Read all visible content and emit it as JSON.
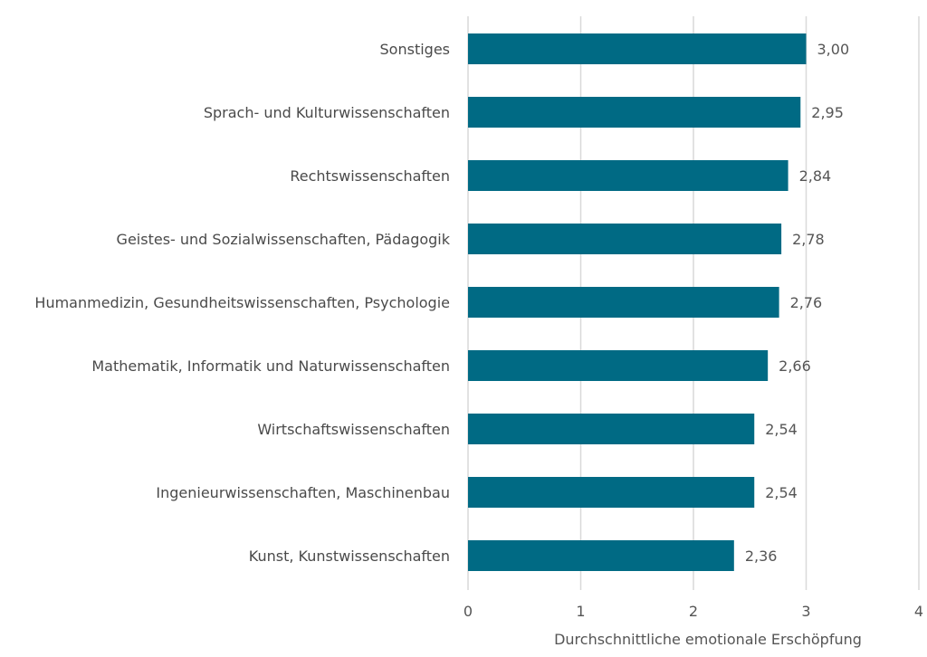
{
  "chart_data": {
    "type": "bar",
    "orientation": "horizontal",
    "categories": [
      "Sonstiges",
      "Sprach- und Kulturwissenschaften",
      "Rechtswissenschaften",
      "Geistes- und Sozialwissenschaften, Pädagogik",
      "Humanmedizin, Gesundheitswissenschaften, Psychologie",
      "Mathematik, Informatik und Naturwissenschaften",
      "Wirtschaftswissenschaften",
      "Ingenieurwissenschaften, Maschinenbau",
      "Kunst, Kunstwissenschaften"
    ],
    "values": [
      3.0,
      2.95,
      2.84,
      2.78,
      2.76,
      2.66,
      2.54,
      2.54,
      2.36
    ],
    "value_labels": [
      "3,00",
      "2,95",
      "2,84",
      "2,78",
      "2,76",
      "2,66",
      "2,54",
      "2,54",
      "2,36"
    ],
    "title": "",
    "xlabel": "Durchschnittliche emotionale Erschöpfung",
    "ylabel": "",
    "xlim": [
      0,
      4
    ],
    "xticks": [
      0,
      1,
      2,
      3,
      4
    ],
    "xtick_labels": [
      "0",
      "1",
      "2",
      "3",
      "4"
    ],
    "grid": "vertical",
    "legend": "none",
    "bar_color": "#006A84",
    "gridline_color": "#D9D9D9",
    "text_color": "#4A4A4A"
  }
}
